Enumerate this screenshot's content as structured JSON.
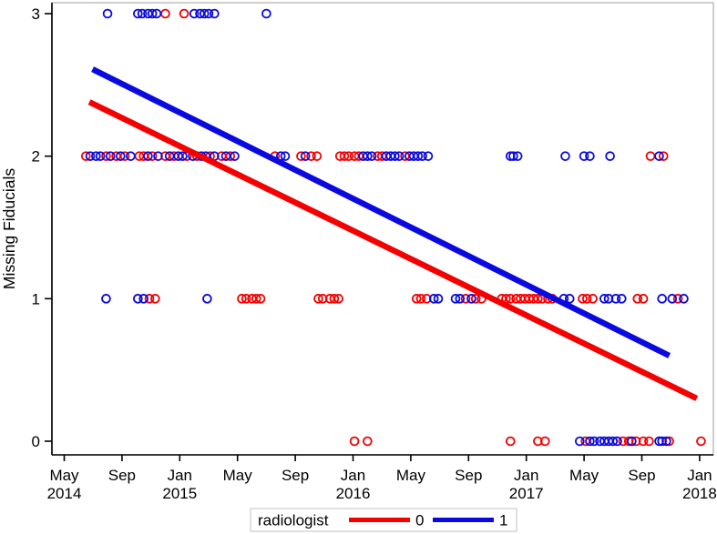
{
  "figure": {
    "ylabel": "Missing Fiducials"
  },
  "chart_data": {
    "type": "scatter",
    "title": "",
    "xlabel": "",
    "ylabel": "Missing Fiducials",
    "x_unit": "months since May 2014",
    "grid": false,
    "xlim_months": [
      -0.9,
      45.0
    ],
    "ylim": [
      -0.1,
      3.08
    ],
    "y_ticks": [
      "0",
      "1",
      "2",
      "3"
    ],
    "x_ticks": [
      {
        "m": 0,
        "line1": "May",
        "line2": "2014"
      },
      {
        "m": 4,
        "line1": "Sep",
        "line2": ""
      },
      {
        "m": 8,
        "line1": "Jan",
        "line2": "2015"
      },
      {
        "m": 12,
        "line1": "May",
        "line2": ""
      },
      {
        "m": 16,
        "line1": "Sep",
        "line2": ""
      },
      {
        "m": 20,
        "line1": "Jan",
        "line2": "2016"
      },
      {
        "m": 24,
        "line1": "May",
        "line2": ""
      },
      {
        "m": 28,
        "line1": "Sep",
        "line2": ""
      },
      {
        "m": 32,
        "line1": "Jan",
        "line2": "2017"
      },
      {
        "m": 36,
        "line1": "May",
        "line2": ""
      },
      {
        "m": 40,
        "line1": "Sep",
        "line2": ""
      },
      {
        "m": 44,
        "line1": "Jan",
        "line2": "2018"
      }
    ],
    "legend": {
      "title": "radiologist",
      "position": "bottom",
      "entries": [
        {
          "label": "0",
          "color": "#f40000"
        },
        {
          "label": "1",
          "color": "#0a0ae0"
        }
      ]
    },
    "series": [
      {
        "name": "radiologist 0",
        "color": "#f40000",
        "marker": "open-circle",
        "fit_line": {
          "x": [
            1.74,
            43.8
          ],
          "y": [
            2.38,
            0.3
          ]
        },
        "points": [
          [
            7.0,
            3
          ],
          [
            8.3,
            3
          ],
          [
            1.5,
            2
          ],
          [
            2.9,
            2
          ],
          [
            3.6,
            2
          ],
          [
            4.2,
            2
          ],
          [
            5.2,
            2
          ],
          [
            5.5,
            2
          ],
          [
            6.1,
            2
          ],
          [
            7.0,
            2
          ],
          [
            7.6,
            2
          ],
          [
            8.5,
            2
          ],
          [
            9.2,
            2
          ],
          [
            10.1,
            2
          ],
          [
            10.9,
            2
          ],
          [
            11.5,
            2
          ],
          [
            14.6,
            2
          ],
          [
            16.4,
            2
          ],
          [
            17.1,
            2
          ],
          [
            17.5,
            2
          ],
          [
            19.1,
            2
          ],
          [
            19.4,
            2
          ],
          [
            19.7,
            2
          ],
          [
            20.1,
            2
          ],
          [
            20.4,
            2
          ],
          [
            21.7,
            2
          ],
          [
            22.0,
            2
          ],
          [
            23.6,
            2
          ],
          [
            40.6,
            2
          ],
          [
            41.5,
            2
          ],
          [
            5.9,
            1
          ],
          [
            6.3,
            1
          ],
          [
            12.3,
            1
          ],
          [
            12.6,
            1
          ],
          [
            13.0,
            1
          ],
          [
            13.3,
            1
          ],
          [
            13.6,
            1
          ],
          [
            17.6,
            1
          ],
          [
            17.9,
            1
          ],
          [
            18.4,
            1
          ],
          [
            18.7,
            1
          ],
          [
            19.0,
            1
          ],
          [
            24.4,
            1
          ],
          [
            24.7,
            1
          ],
          [
            25.1,
            1
          ],
          [
            27.8,
            1
          ],
          [
            28.5,
            1
          ],
          [
            28.9,
            1
          ],
          [
            30.3,
            1
          ],
          [
            30.6,
            1
          ],
          [
            30.9,
            1
          ],
          [
            31.3,
            1
          ],
          [
            31.6,
            1
          ],
          [
            31.9,
            1
          ],
          [
            32.2,
            1
          ],
          [
            32.5,
            1
          ],
          [
            32.8,
            1
          ],
          [
            33.1,
            1
          ],
          [
            33.5,
            1
          ],
          [
            33.8,
            1
          ],
          [
            35.9,
            1
          ],
          [
            36.2,
            1
          ],
          [
            36.6,
            1
          ],
          [
            39.7,
            1
          ],
          [
            40.1,
            1
          ],
          [
            42.5,
            1
          ],
          [
            20.1,
            0
          ],
          [
            21.0,
            0
          ],
          [
            30.9,
            0
          ],
          [
            32.8,
            0
          ],
          [
            33.3,
            0
          ],
          [
            36.1,
            0
          ],
          [
            38.7,
            0
          ],
          [
            39.1,
            0
          ],
          [
            39.6,
            0
          ],
          [
            40.1,
            0
          ],
          [
            40.5,
            0
          ],
          [
            41.9,
            0
          ],
          [
            44.1,
            0
          ]
        ]
      },
      {
        "name": "radiologist 1",
        "color": "#0a0ae0",
        "marker": "open-circle",
        "fit_line": {
          "x": [
            1.96,
            41.9
          ],
          "y": [
            2.61,
            0.6
          ]
        },
        "points": [
          [
            3.0,
            3
          ],
          [
            5.1,
            3
          ],
          [
            5.4,
            3
          ],
          [
            5.8,
            3
          ],
          [
            6.1,
            3
          ],
          [
            6.4,
            3
          ],
          [
            9.0,
            3
          ],
          [
            9.4,
            3
          ],
          [
            9.7,
            3
          ],
          [
            10.0,
            3
          ],
          [
            10.4,
            3
          ],
          [
            14.0,
            3
          ],
          [
            1.8,
            2
          ],
          [
            2.2,
            2
          ],
          [
            2.5,
            2
          ],
          [
            3.2,
            2
          ],
          [
            3.9,
            2
          ],
          [
            4.6,
            2
          ],
          [
            5.8,
            2
          ],
          [
            6.5,
            2
          ],
          [
            7.3,
            2
          ],
          [
            7.9,
            2
          ],
          [
            8.2,
            2
          ],
          [
            8.9,
            2
          ],
          [
            9.5,
            2
          ],
          [
            9.8,
            2
          ],
          [
            10.4,
            2
          ],
          [
            11.2,
            2
          ],
          [
            11.8,
            2
          ],
          [
            15.0,
            2
          ],
          [
            15.3,
            2
          ],
          [
            16.7,
            2
          ],
          [
            20.7,
            2
          ],
          [
            21.0,
            2
          ],
          [
            21.3,
            2
          ],
          [
            22.3,
            2
          ],
          [
            22.6,
            2
          ],
          [
            22.9,
            2
          ],
          [
            23.2,
            2
          ],
          [
            23.9,
            2
          ],
          [
            24.2,
            2
          ],
          [
            24.5,
            2
          ],
          [
            24.8,
            2
          ],
          [
            25.2,
            2
          ],
          [
            30.9,
            2
          ],
          [
            31.1,
            2
          ],
          [
            31.4,
            2
          ],
          [
            34.7,
            2
          ],
          [
            36.0,
            2
          ],
          [
            36.4,
            2
          ],
          [
            37.8,
            2
          ],
          [
            41.2,
            2
          ],
          [
            2.9,
            1
          ],
          [
            5.1,
            1
          ],
          [
            5.5,
            1
          ],
          [
            9.9,
            1
          ],
          [
            25.6,
            1
          ],
          [
            25.9,
            1
          ],
          [
            27.1,
            1
          ],
          [
            27.4,
            1
          ],
          [
            28.2,
            1
          ],
          [
            34.6,
            1
          ],
          [
            35.0,
            1
          ],
          [
            37.4,
            1
          ],
          [
            37.7,
            1
          ],
          [
            38.2,
            1
          ],
          [
            38.6,
            1
          ],
          [
            41.4,
            1
          ],
          [
            42.1,
            1
          ],
          [
            42.9,
            1
          ],
          [
            35.7,
            0
          ],
          [
            36.4,
            0
          ],
          [
            36.7,
            0
          ],
          [
            37.1,
            0
          ],
          [
            37.4,
            0
          ],
          [
            37.7,
            0
          ],
          [
            38.0,
            0
          ],
          [
            38.3,
            0
          ],
          [
            39.3,
            0
          ],
          [
            41.2,
            0
          ],
          [
            41.4,
            0
          ],
          [
            41.7,
            0
          ]
        ]
      }
    ]
  }
}
